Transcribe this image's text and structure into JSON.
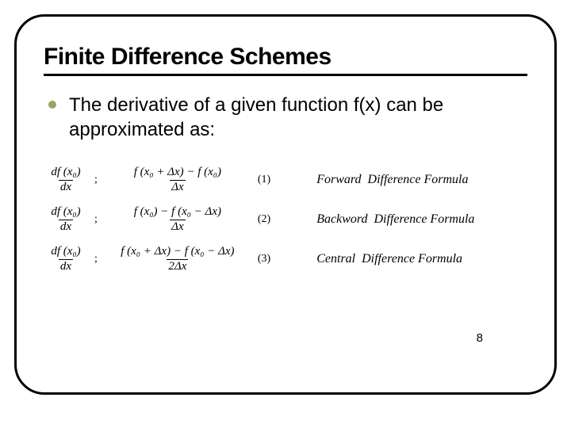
{
  "slide": {
    "title": "Finite Difference Schemes",
    "bullet": "The derivative of a given function f(x) can be approximated as:",
    "bullet_color": "#99a566",
    "border_color": "#000000",
    "page_number": "8"
  },
  "formulas": [
    {
      "lhs_num": "df (x₀)",
      "lhs_den": "dx",
      "sep": ";",
      "rhs_num": "f (x₀ + Δx) − f (x₀)",
      "rhs_den": "Δx",
      "eq_num": "(1)",
      "label": "Forward  Difference Formula"
    },
    {
      "lhs_num": "df (x₀)",
      "lhs_den": "dx",
      "sep": ";",
      "rhs_num": "f (x₀) − f (x₀ − Δx)",
      "rhs_den": "Δx",
      "eq_num": "(2)",
      "label": "Backword  Difference Formula"
    },
    {
      "lhs_num": "df (x₀)",
      "lhs_den": "dx",
      "sep": ";",
      "rhs_num": "f (x₀ + Δx) − f (x₀ − Δx)",
      "rhs_den": "2Δx",
      "eq_num": "(3)",
      "label": "Central  Difference Formula"
    }
  ]
}
